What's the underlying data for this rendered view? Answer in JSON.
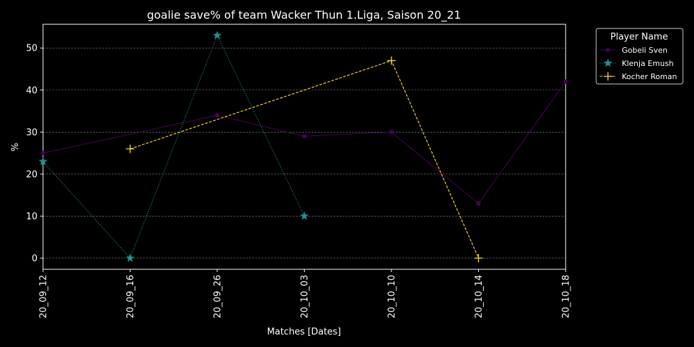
{
  "chart_data": {
    "type": "line",
    "title": "goalie save% of team Wacker Thun 1.Liga, Saison 20_21",
    "xlabel": "Matches [Dates]",
    "ylabel": "%",
    "categories": [
      "20_09_12",
      "20_09_16",
      "20_09_26",
      "20_10_03",
      "20_10_10",
      "20_10_14",
      "20_10_18"
    ],
    "ylim": [
      -2.65,
      55.65
    ],
    "yticks": [
      0,
      10,
      20,
      30,
      40,
      50
    ],
    "grid": "horizontal-dashed",
    "legend": {
      "title": "Player Name",
      "placement": "outside-top-right"
    },
    "series": [
      {
        "name": "Gobeli Sven",
        "color": "#440154",
        "marker": "circle",
        "linestyle": "solid",
        "values": [
          25,
          null,
          34,
          29,
          30,
          13,
          42
        ]
      },
      {
        "name": "Klenja Emush",
        "color": "#21918c",
        "marker": "star",
        "linestyle": "dotted",
        "values": [
          23,
          0,
          53,
          10,
          null,
          null,
          null
        ]
      },
      {
        "name": "Kocher Roman",
        "color": "#fde725",
        "marker": "plus",
        "linestyle": "dashed",
        "values": [
          null,
          26,
          null,
          null,
          47,
          0,
          null
        ]
      }
    ]
  }
}
